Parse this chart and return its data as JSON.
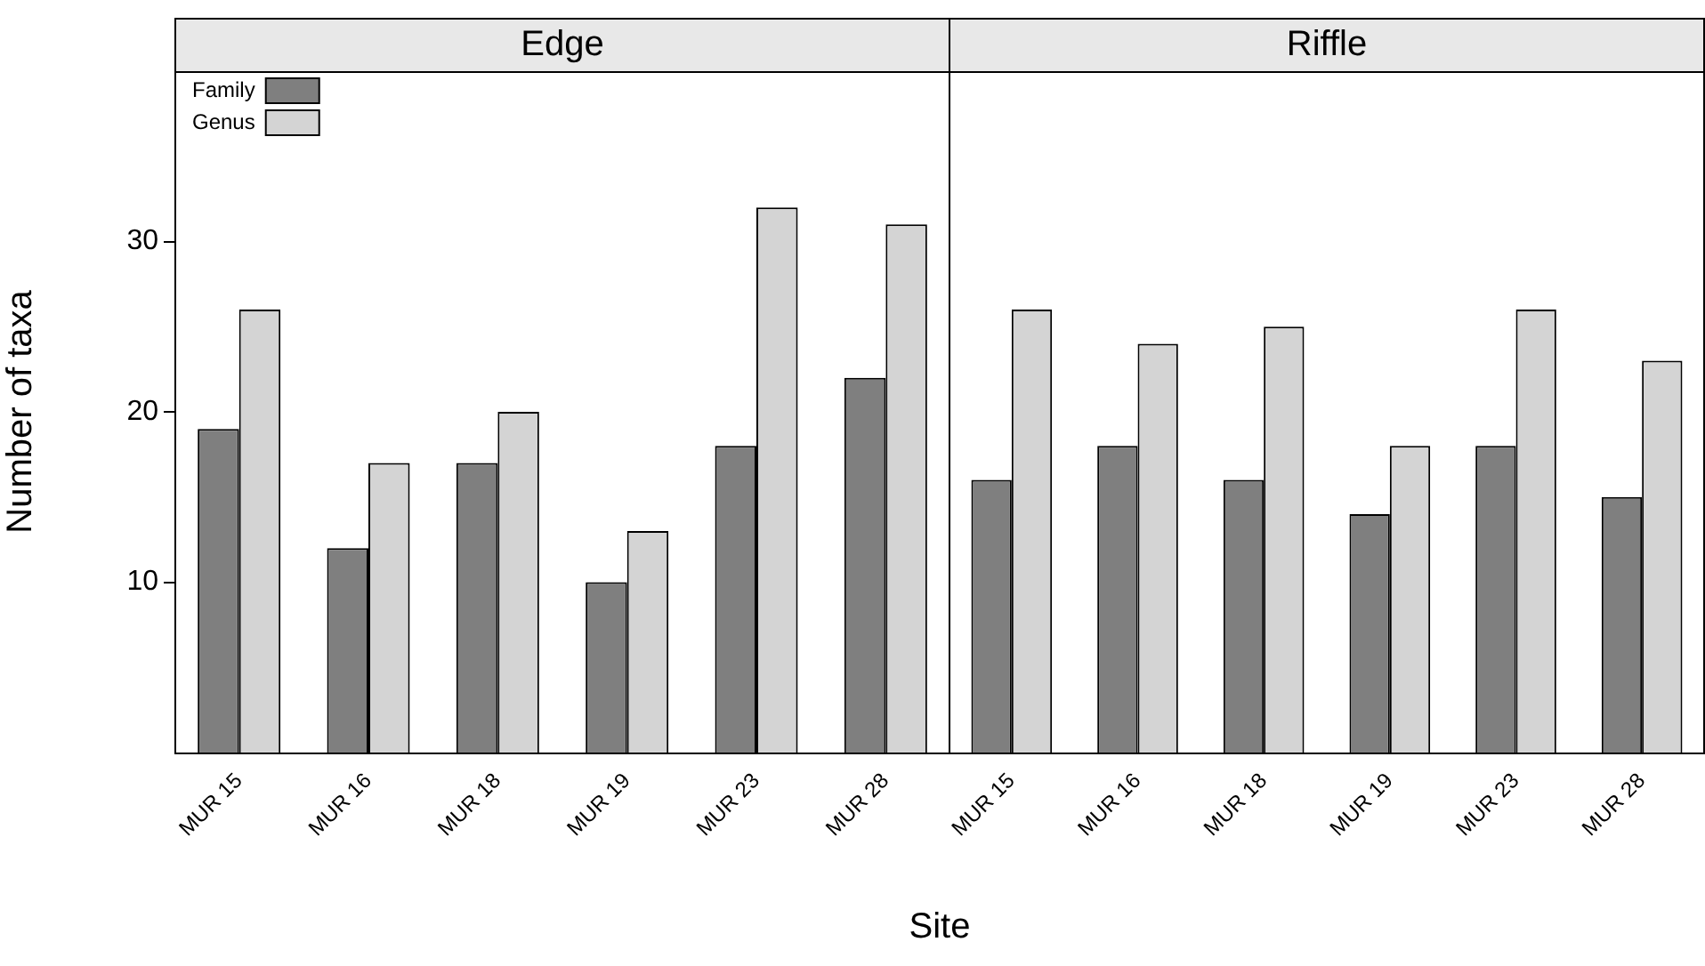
{
  "chart_data": [
    {
      "type": "bar",
      "title": "Edge",
      "xlabel": "Site",
      "ylabel": "Number of taxa",
      "categories": [
        "MUR 15",
        "MUR 16",
        "MUR 18",
        "MUR 19",
        "MUR 23",
        "MUR 28"
      ],
      "ylim": [
        0,
        40
      ],
      "yticks": [
        10,
        20,
        30
      ],
      "grid": false,
      "legend": "top left",
      "series": [
        {
          "name": "Family",
          "color": "#7f7f7f",
          "values": [
            19,
            12,
            17,
            10,
            18,
            22
          ]
        },
        {
          "name": "Genus",
          "color": "#d4d4d4",
          "values": [
            26,
            17,
            20,
            13,
            32,
            31
          ]
        }
      ]
    },
    {
      "type": "bar",
      "title": "Riffle",
      "categories": [
        "MUR 15",
        "MUR 16",
        "MUR 18",
        "MUR 19",
        "MUR 23",
        "MUR 28"
      ],
      "ylim": [
        0,
        40
      ],
      "yticks": [
        10,
        20,
        30
      ],
      "grid": false,
      "tick_labels": "x",
      "series": [
        {
          "color": "#7f7f7f",
          "values": [
            16,
            18,
            16,
            14,
            18,
            15
          ]
        },
        {
          "color": "#d4d4d4",
          "values": [
            26,
            24,
            25,
            18,
            26,
            23
          ]
        }
      ]
    }
  ]
}
